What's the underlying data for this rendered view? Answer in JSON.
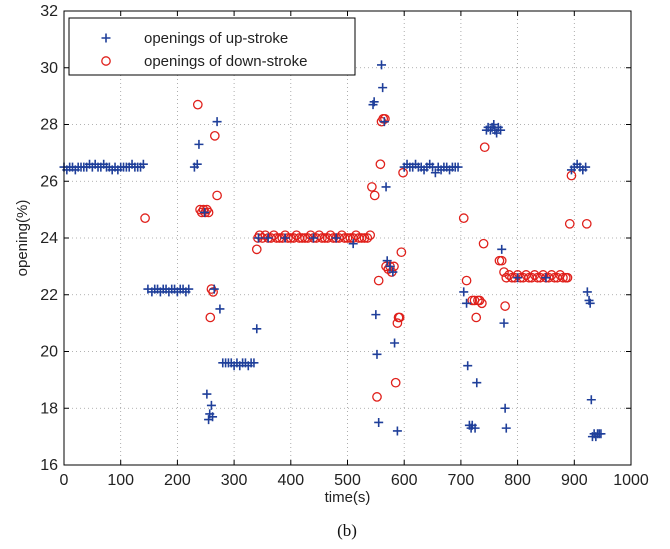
{
  "caption": "(b)",
  "colors": {
    "up_stroke": "#1f3f9a",
    "down_stroke": "#e0201b",
    "grid": "#9a9a9a",
    "axis": "#000000"
  },
  "chart_data": {
    "type": "scatter",
    "title": "",
    "xlabel": "time(s)",
    "ylabel": "opening(%)",
    "xlim": [
      0,
      1000
    ],
    "ylim": [
      16,
      32
    ],
    "xticks": [
      "0",
      "100",
      "200",
      "300",
      "400",
      "500",
      "600",
      "700",
      "800",
      "900",
      "1000"
    ],
    "yticks": [
      "16",
      "18",
      "20",
      "22",
      "24",
      "26",
      "28",
      "30",
      "32"
    ],
    "grid": true,
    "grid_style": "dotted",
    "legend_position": "top-left",
    "series": [
      {
        "name": "openings of up-stroke",
        "marker": "plus",
        "color": "#1f3f9a",
        "points": [
          [
            0,
            26.5
          ],
          [
            5,
            26.4
          ],
          [
            10,
            26.5
          ],
          [
            15,
            26.5
          ],
          [
            20,
            26.4
          ],
          [
            25,
            26.5
          ],
          [
            30,
            26.5
          ],
          [
            35,
            26.5
          ],
          [
            40,
            26.5
          ],
          [
            45,
            26.6
          ],
          [
            50,
            26.5
          ],
          [
            55,
            26.6
          ],
          [
            60,
            26.5
          ],
          [
            65,
            26.5
          ],
          [
            70,
            26.6
          ],
          [
            75,
            26.5
          ],
          [
            80,
            26.5
          ],
          [
            85,
            26.4
          ],
          [
            90,
            26.5
          ],
          [
            95,
            26.4
          ],
          [
            100,
            26.5
          ],
          [
            105,
            26.5
          ],
          [
            110,
            26.5
          ],
          [
            115,
            26.5
          ],
          [
            120,
            26.6
          ],
          [
            125,
            26.5
          ],
          [
            130,
            26.5
          ],
          [
            135,
            26.5
          ],
          [
            140,
            26.6
          ],
          [
            148,
            22.2
          ],
          [
            155,
            22.1
          ],
          [
            160,
            22.2
          ],
          [
            165,
            22.2
          ],
          [
            170,
            22.1
          ],
          [
            175,
            22.2
          ],
          [
            180,
            22.2
          ],
          [
            185,
            22.1
          ],
          [
            190,
            22.2
          ],
          [
            195,
            22.2
          ],
          [
            200,
            22.1
          ],
          [
            205,
            22.2
          ],
          [
            210,
            22.2
          ],
          [
            215,
            22.1
          ],
          [
            220,
            22.2
          ],
          [
            230,
            26.5
          ],
          [
            235,
            26.6
          ],
          [
            238,
            27.3
          ],
          [
            248,
            24.9
          ],
          [
            252,
            18.5
          ],
          [
            255,
            17.6
          ],
          [
            257,
            17.8
          ],
          [
            260,
            18.1
          ],
          [
            262,
            17.7
          ],
          [
            265,
            22.2
          ],
          [
            270,
            28.1
          ],
          [
            275,
            21.5
          ],
          [
            280,
            19.6
          ],
          [
            285,
            19.6
          ],
          [
            290,
            19.6
          ],
          [
            295,
            19.6
          ],
          [
            300,
            19.5
          ],
          [
            305,
            19.6
          ],
          [
            310,
            19.5
          ],
          [
            315,
            19.6
          ],
          [
            320,
            19.6
          ],
          [
            325,
            19.5
          ],
          [
            330,
            19.6
          ],
          [
            335,
            19.6
          ],
          [
            340,
            20.8
          ],
          [
            343,
            24.0
          ],
          [
            360,
            24.0
          ],
          [
            390,
            24.0
          ],
          [
            440,
            24.0
          ],
          [
            480,
            24.0
          ],
          [
            510,
            23.8
          ],
          [
            545,
            28.7
          ],
          [
            547,
            28.8
          ],
          [
            550,
            21.3
          ],
          [
            552,
            19.9
          ],
          [
            555,
            17.5
          ],
          [
            560,
            30.1
          ],
          [
            562,
            29.3
          ],
          [
            565,
            28.1
          ],
          [
            568,
            25.8
          ],
          [
            570,
            23.2
          ],
          [
            575,
            23.0
          ],
          [
            580,
            22.8
          ],
          [
            583,
            20.3
          ],
          [
            588,
            17.2
          ],
          [
            600,
            26.5
          ],
          [
            605,
            26.6
          ],
          [
            610,
            26.5
          ],
          [
            615,
            26.5
          ],
          [
            620,
            26.6
          ],
          [
            625,
            26.5
          ],
          [
            630,
            26.5
          ],
          [
            635,
            26.4
          ],
          [
            640,
            26.5
          ],
          [
            645,
            26.6
          ],
          [
            650,
            26.5
          ],
          [
            655,
            26.3
          ],
          [
            660,
            26.5
          ],
          [
            665,
            26.4
          ],
          [
            670,
            26.5
          ],
          [
            675,
            26.5
          ],
          [
            680,
            26.4
          ],
          [
            685,
            26.5
          ],
          [
            690,
            26.5
          ],
          [
            695,
            26.5
          ],
          [
            705,
            22.1
          ],
          [
            710,
            21.7
          ],
          [
            712,
            19.5
          ],
          [
            715,
            17.4
          ],
          [
            718,
            17.3
          ],
          [
            720,
            17.4
          ],
          [
            725,
            17.3
          ],
          [
            728,
            18.9
          ],
          [
            745,
            27.8
          ],
          [
            748,
            27.9
          ],
          [
            752,
            27.8
          ],
          [
            755,
            27.9
          ],
          [
            758,
            28.0
          ],
          [
            760,
            27.8
          ],
          [
            763,
            27.7
          ],
          [
            766,
            27.9
          ],
          [
            770,
            27.8
          ],
          [
            772,
            23.6
          ],
          [
            776,
            21.0
          ],
          [
            778,
            18.0
          ],
          [
            780,
            17.3
          ],
          [
            800,
            22.6
          ],
          [
            850,
            22.6
          ],
          [
            895,
            26.4
          ],
          [
            900,
            26.5
          ],
          [
            905,
            26.6
          ],
          [
            910,
            26.5
          ],
          [
            915,
            26.4
          ],
          [
            920,
            26.5
          ],
          [
            923,
            22.1
          ],
          [
            926,
            21.8
          ],
          [
            928,
            21.7
          ],
          [
            930,
            18.3
          ],
          [
            932,
            17.0
          ],
          [
            935,
            17.1
          ],
          [
            938,
            17.0
          ],
          [
            941,
            17.1
          ],
          [
            944,
            17.1
          ],
          [
            947,
            17.1
          ]
        ]
      },
      {
        "name": "openings of down-stroke",
        "marker": "circle",
        "color": "#e0201b",
        "points": [
          [
            143,
            24.7
          ],
          [
            236,
            28.7
          ],
          [
            240,
            25.0
          ],
          [
            243,
            24.9
          ],
          [
            246,
            25.0
          ],
          [
            249,
            24.9
          ],
          [
            252,
            25.0
          ],
          [
            255,
            24.9
          ],
          [
            258,
            21.2
          ],
          [
            260,
            22.2
          ],
          [
            263,
            22.1
          ],
          [
            266,
            27.6
          ],
          [
            270,
            25.5
          ],
          [
            340,
            23.6
          ],
          [
            342,
            24.0
          ],
          [
            345,
            24.1
          ],
          [
            350,
            24.0
          ],
          [
            355,
            24.1
          ],
          [
            360,
            24.0
          ],
          [
            365,
            24.0
          ],
          [
            370,
            24.1
          ],
          [
            375,
            24.0
          ],
          [
            380,
            24.0
          ],
          [
            385,
            24.0
          ],
          [
            390,
            24.1
          ],
          [
            395,
            24.0
          ],
          [
            400,
            24.0
          ],
          [
            405,
            24.0
          ],
          [
            410,
            24.1
          ],
          [
            415,
            24.0
          ],
          [
            420,
            24.0
          ],
          [
            425,
            24.0
          ],
          [
            430,
            24.0
          ],
          [
            435,
            24.1
          ],
          [
            440,
            24.0
          ],
          [
            445,
            24.0
          ],
          [
            450,
            24.1
          ],
          [
            455,
            24.0
          ],
          [
            460,
            24.0
          ],
          [
            465,
            24.0
          ],
          [
            470,
            24.1
          ],
          [
            475,
            24.0
          ],
          [
            480,
            24.0
          ],
          [
            485,
            24.0
          ],
          [
            490,
            24.1
          ],
          [
            495,
            24.0
          ],
          [
            500,
            24.0
          ],
          [
            505,
            24.0
          ],
          [
            510,
            24.0
          ],
          [
            515,
            24.1
          ],
          [
            520,
            24.0
          ],
          [
            525,
            24.0
          ],
          [
            530,
            24.0
          ],
          [
            535,
            24.0
          ],
          [
            540,
            24.1
          ],
          [
            543,
            25.8
          ],
          [
            548,
            25.5
          ],
          [
            552,
            18.4
          ],
          [
            555,
            22.5
          ],
          [
            558,
            26.6
          ],
          [
            560,
            28.1
          ],
          [
            563,
            28.2
          ],
          [
            566,
            28.2
          ],
          [
            568,
            23.0
          ],
          [
            572,
            22.9
          ],
          [
            575,
            23.0
          ],
          [
            578,
            22.8
          ],
          [
            582,
            23.0
          ],
          [
            585,
            18.9
          ],
          [
            588,
            21.0
          ],
          [
            590,
            21.2
          ],
          [
            592,
            21.2
          ],
          [
            595,
            23.5
          ],
          [
            598,
            26.3
          ],
          [
            705,
            24.7
          ],
          [
            710,
            22.5
          ],
          [
            720,
            21.8
          ],
          [
            724,
            21.8
          ],
          [
            727,
            21.2
          ],
          [
            730,
            21.8
          ],
          [
            733,
            21.8
          ],
          [
            737,
            21.7
          ],
          [
            740,
            23.8
          ],
          [
            742,
            27.2
          ],
          [
            768,
            23.2
          ],
          [
            772,
            23.2
          ],
          [
            776,
            22.8
          ],
          [
            778,
            21.6
          ],
          [
            780,
            22.6
          ],
          [
            785,
            22.7
          ],
          [
            790,
            22.6
          ],
          [
            795,
            22.6
          ],
          [
            800,
            22.7
          ],
          [
            805,
            22.6
          ],
          [
            810,
            22.6
          ],
          [
            815,
            22.7
          ],
          [
            820,
            22.6
          ],
          [
            825,
            22.6
          ],
          [
            830,
            22.7
          ],
          [
            835,
            22.6
          ],
          [
            840,
            22.6
          ],
          [
            845,
            22.7
          ],
          [
            850,
            22.6
          ],
          [
            855,
            22.6
          ],
          [
            860,
            22.7
          ],
          [
            865,
            22.6
          ],
          [
            870,
            22.6
          ],
          [
            875,
            22.7
          ],
          [
            880,
            22.6
          ],
          [
            885,
            22.6
          ],
          [
            888,
            22.6
          ],
          [
            892,
            24.5
          ],
          [
            895,
            26.2
          ],
          [
            922,
            24.5
          ]
        ]
      }
    ]
  }
}
